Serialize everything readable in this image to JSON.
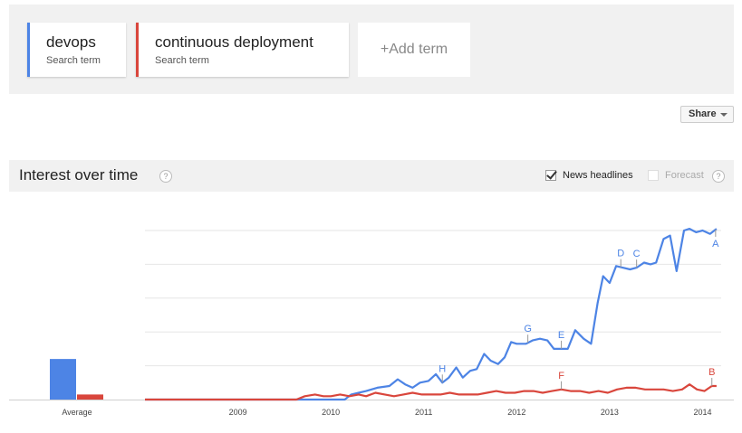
{
  "terms": [
    {
      "name": "devops",
      "sub": "Search term",
      "color": "#4d84e5"
    },
    {
      "name": "continuous deployment",
      "sub": "Search term",
      "color": "#d9463c"
    }
  ],
  "add_term_label": "+Add term",
  "share_label": "Share",
  "section_title": "Interest over time",
  "help_glyph": "?",
  "news_headlines_label": "News headlines",
  "news_headlines_checked": true,
  "forecast_label": "Forecast",
  "forecast_checked": false,
  "chart_data": {
    "type": "line",
    "xlabel": "",
    "ylabel": "",
    "ylim": [
      0,
      100
    ],
    "grid": true,
    "x_tick_labels": [
      "2009",
      "2010",
      "2011",
      "2012",
      "2013",
      "2014"
    ],
    "x_tick_positions": [
      2009.0,
      2010.0,
      2011.0,
      2012.0,
      2013.0,
      2014.0
    ],
    "x_range": [
      2008.0,
      2014.2
    ],
    "average_label": "Average",
    "average_values": {
      "devops": 24,
      "continuous deployment": 3
    },
    "series": [
      {
        "name": "devops",
        "color": "#4d84e5",
        "x": [
          2008.0,
          2009.63,
          2010.15,
          2010.22,
          2010.3,
          2010.38,
          2010.5,
          2010.63,
          2010.72,
          2010.8,
          2010.88,
          2010.96,
          2011.05,
          2011.13,
          2011.2,
          2011.27,
          2011.35,
          2011.42,
          2011.5,
          2011.57,
          2011.65,
          2011.72,
          2011.8,
          2011.87,
          2011.94,
          2012.0,
          2012.1,
          2012.17,
          2012.25,
          2012.33,
          2012.4,
          2012.48,
          2012.55,
          2012.63,
          2012.72,
          2012.8,
          2012.87,
          2012.93,
          2013.0,
          2013.07,
          2013.14,
          2013.22,
          2013.29,
          2013.37,
          2013.44,
          2013.5,
          2013.58,
          2013.65,
          2013.72,
          2013.8,
          2013.86,
          2013.93,
          2014.0,
          2014.08,
          2014.15
        ],
        "y": [
          0,
          0,
          0,
          3,
          4,
          5,
          7,
          8,
          12,
          9,
          7,
          10,
          11,
          15,
          10,
          13,
          19,
          13,
          17,
          18,
          27,
          23,
          21,
          25,
          34,
          33,
          33,
          35,
          36,
          35,
          30,
          30,
          30,
          41,
          36,
          33,
          57,
          73,
          69,
          79,
          78,
          77,
          78,
          81,
          80,
          81,
          95,
          97,
          76,
          100,
          101,
          99,
          100,
          98,
          101
        ]
      },
      {
        "name": "continuous deployment",
        "color": "#d9463c",
        "x": [
          2008.0,
          2009.63,
          2009.72,
          2009.83,
          2009.92,
          2010.0,
          2010.1,
          2010.2,
          2010.3,
          2010.38,
          2010.48,
          2010.58,
          2010.68,
          2010.78,
          2010.88,
          2010.98,
          2011.08,
          2011.18,
          2011.28,
          2011.38,
          2011.48,
          2011.58,
          2011.68,
          2011.78,
          2011.88,
          2011.98,
          2012.08,
          2012.18,
          2012.28,
          2012.38,
          2012.48,
          2012.58,
          2012.68,
          2012.78,
          2012.88,
          2012.98,
          2013.08,
          2013.18,
          2013.28,
          2013.38,
          2013.48,
          2013.58,
          2013.68,
          2013.78,
          2013.86,
          2013.94,
          2014.02,
          2014.1,
          2014.15
        ],
        "y": [
          0,
          0,
          2,
          3,
          2,
          2,
          3,
          2,
          3,
          2,
          4,
          3,
          2,
          3,
          4,
          3,
          3,
          3,
          4,
          3,
          3,
          3,
          4,
          5,
          4,
          4,
          5,
          5,
          4,
          5,
          6,
          5,
          5,
          4,
          5,
          4,
          6,
          7,
          7,
          6,
          6,
          6,
          5,
          6,
          9,
          6,
          5,
          8,
          8
        ]
      }
    ],
    "annotations": [
      {
        "label": "A",
        "series": "devops",
        "x": 2014.14,
        "side": "below"
      },
      {
        "label": "B",
        "series": "continuous deployment",
        "x": 2014.1,
        "side": "above"
      },
      {
        "label": "C",
        "series": "devops",
        "x": 2013.29,
        "side": "above"
      },
      {
        "label": "D",
        "series": "devops",
        "x": 2013.12,
        "side": "above"
      },
      {
        "label": "E",
        "series": "devops",
        "x": 2012.48,
        "side": "above"
      },
      {
        "label": "F",
        "series": "continuous deployment",
        "x": 2012.48,
        "side": "above"
      },
      {
        "label": "G",
        "series": "devops",
        "x": 2012.12,
        "side": "above"
      },
      {
        "label": "H",
        "series": "devops",
        "x": 2011.2,
        "side": "above"
      }
    ]
  }
}
